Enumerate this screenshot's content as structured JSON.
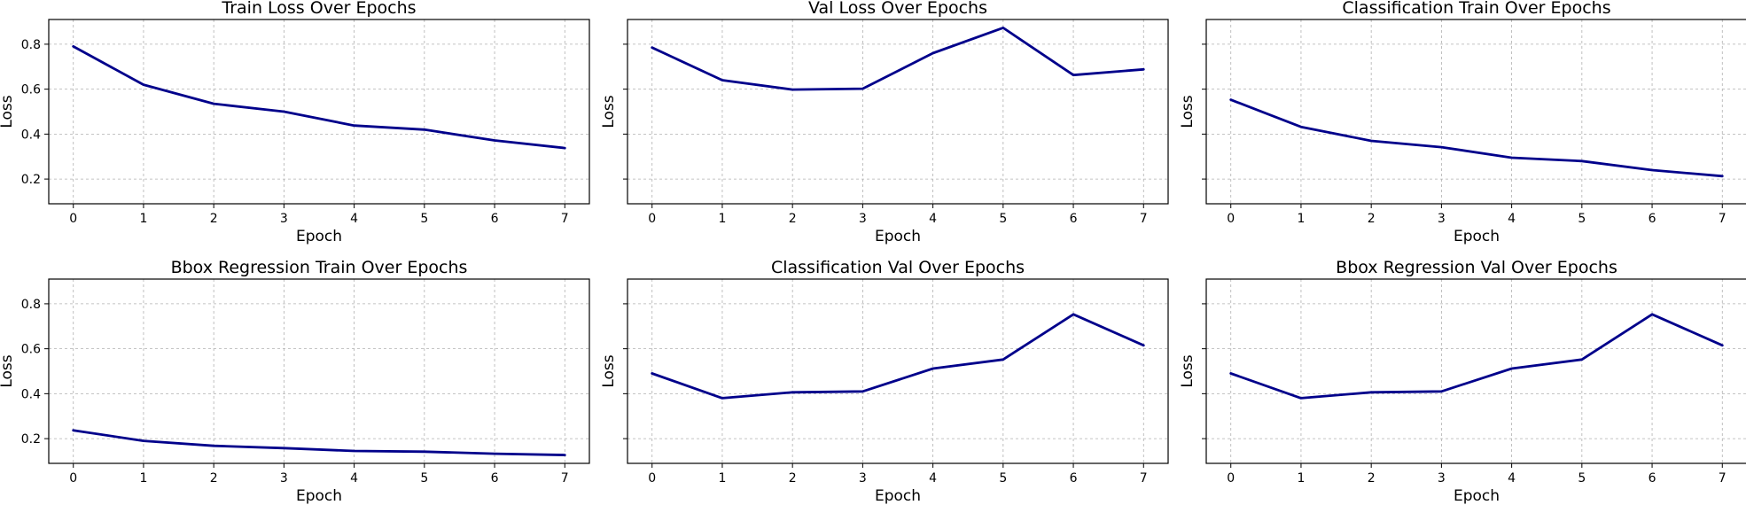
{
  "colors": {
    "line": "#00008b",
    "grid": "#b0b0b0"
  },
  "chart_data": [
    {
      "type": "line",
      "title": "Train Loss Over Epochs",
      "xlabel": "Epoch",
      "ylabel": "Loss",
      "x": [
        0,
        1,
        2,
        3,
        4,
        5,
        6,
        7
      ],
      "values": [
        0.79,
        0.62,
        0.535,
        0.5,
        0.438,
        0.42,
        0.372,
        0.338
      ],
      "xlim": [
        -0.35,
        7.35
      ],
      "ylim": [
        0.09,
        0.91
      ],
      "yticks": [
        0.2,
        0.4,
        0.6,
        0.8
      ],
      "show_yticklabels": true,
      "grid": true
    },
    {
      "type": "line",
      "title": "Val Loss Over Epochs",
      "xlabel": "Epoch",
      "ylabel": "Loss",
      "x": [
        0,
        1,
        2,
        3,
        4,
        5,
        6,
        7
      ],
      "values": [
        0.785,
        0.64,
        0.598,
        0.602,
        0.76,
        0.873,
        0.663,
        0.688
      ],
      "xlim": [
        -0.35,
        7.35
      ],
      "ylim": [
        0.09,
        0.91
      ],
      "yticks": [
        0.2,
        0.4,
        0.6,
        0.8
      ],
      "show_yticklabels": false,
      "grid": true
    },
    {
      "type": "line",
      "title": "Classification Train Over Epochs",
      "xlabel": "Epoch",
      "ylabel": "Loss",
      "x": [
        0,
        1,
        2,
        3,
        4,
        5,
        6,
        7
      ],
      "values": [
        0.553,
        0.432,
        0.37,
        0.342,
        0.295,
        0.28,
        0.24,
        0.213
      ],
      "xlim": [
        -0.35,
        7.35
      ],
      "ylim": [
        0.09,
        0.91
      ],
      "yticks": [
        0.2,
        0.4,
        0.6,
        0.8
      ],
      "show_yticklabels": false,
      "grid": true
    },
    {
      "type": "line",
      "title": "Bbox Regression Train Over Epochs",
      "xlabel": "Epoch",
      "ylabel": "Loss",
      "x": [
        0,
        1,
        2,
        3,
        4,
        5,
        6,
        7
      ],
      "values": [
        0.237,
        0.19,
        0.168,
        0.158,
        0.145,
        0.142,
        0.133,
        0.127
      ],
      "xlim": [
        -0.35,
        7.35
      ],
      "ylim": [
        0.09,
        0.91
      ],
      "yticks": [
        0.2,
        0.4,
        0.6,
        0.8
      ],
      "show_yticklabels": true,
      "grid": true
    },
    {
      "type": "line",
      "title": "Classification Val Over Epochs",
      "xlabel": "Epoch",
      "ylabel": "Loss",
      "x": [
        0,
        1,
        2,
        3,
        4,
        5,
        6,
        7
      ],
      "values": [
        0.49,
        0.38,
        0.406,
        0.41,
        0.512,
        0.552,
        0.753,
        0.615
      ],
      "xlim": [
        -0.35,
        7.35
      ],
      "ylim": [
        0.09,
        0.91
      ],
      "yticks": [
        0.2,
        0.4,
        0.6,
        0.8
      ],
      "show_yticklabels": false,
      "grid": true
    },
    {
      "type": "line",
      "title": "Bbox Regression Val Over Epochs",
      "xlabel": "Epoch",
      "ylabel": "Loss",
      "x": [
        0,
        1,
        2,
        3,
        4,
        5,
        6,
        7
      ],
      "values": [
        0.49,
        0.38,
        0.406,
        0.41,
        0.512,
        0.552,
        0.753,
        0.615
      ],
      "xlim": [
        -0.35,
        7.35
      ],
      "ylim": [
        0.09,
        0.91
      ],
      "yticks": [
        0.2,
        0.4,
        0.6,
        0.8
      ],
      "show_yticklabels": false,
      "grid": true
    }
  ]
}
